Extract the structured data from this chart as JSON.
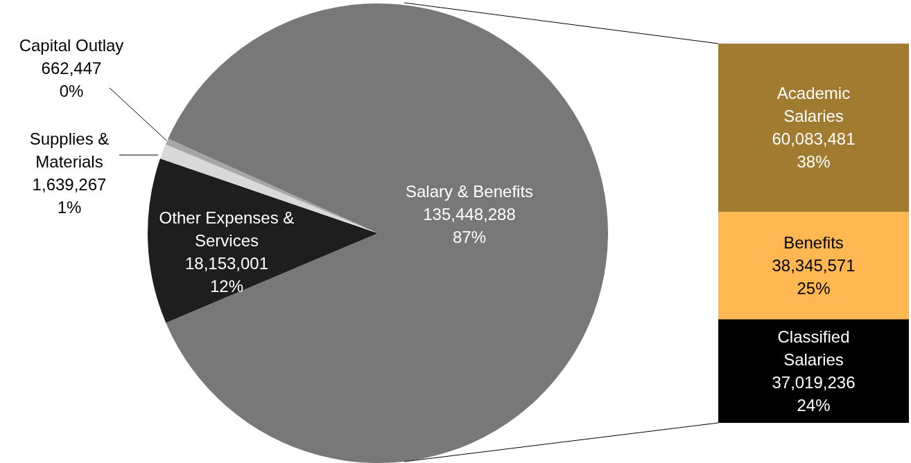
{
  "chart_data": [
    {
      "type": "pie",
      "categories": [
        "Salary & Benefits",
        "Other Expenses & Services",
        "Supplies & Materials",
        "Capital Outlay"
      ],
      "values": [
        135448288,
        18153001,
        1639267,
        662447
      ],
      "colors": [
        "#787878",
        "#1e1e1e",
        "#d9d9d9",
        "#a6a6a6"
      ],
      "value_labels": [
        "135,448,288\n87%",
        "18,153,001\n12%",
        "1,639,267\n1%",
        "662,447\n0%"
      ]
    },
    {
      "type": "bar",
      "stacked": true,
      "categories": [
        null
      ],
      "series": [
        {
          "name": "Classified Salaries",
          "color": "#000000",
          "values": [
            37019236
          ],
          "value_labels": [
            "37,019,236\n24%"
          ]
        },
        {
          "name": "Benefits",
          "color": "#ffb752",
          "values": [
            38345571
          ],
          "value_labels": [
            "38,345,571\n25%"
          ]
        },
        {
          "name": "Academic Salaries",
          "color": "#a07b30",
          "values": [
            60083481
          ],
          "value_labels": [
            "60,083,481\n38%"
          ]
        }
      ]
    }
  ]
}
